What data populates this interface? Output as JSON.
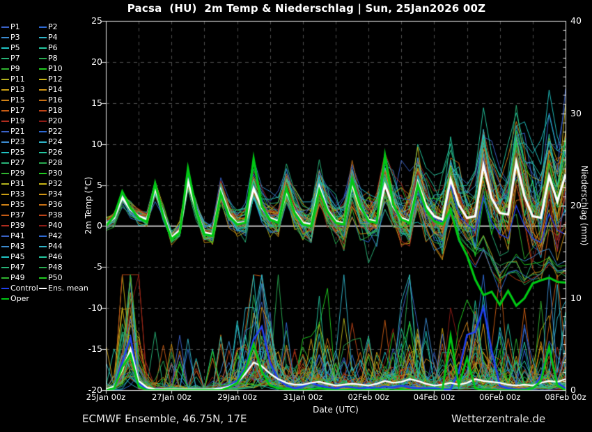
{
  "title": "Pacsa  (HU)  2m Temp & Niederschlag | Sun, 25Jan2026 00Z",
  "footer": {
    "left": "ECMWF Ensemble, 46.75N, 17E",
    "right": "Wetterzentrale.de"
  },
  "axes": {
    "left": {
      "label": "2m Temp (°C)",
      "ticks": [
        25,
        20,
        15,
        10,
        5,
        0,
        -5,
        -10,
        -15,
        -20
      ]
    },
    "right": {
      "label": "Niederschlag (mm)",
      "ticks": [
        40,
        30,
        20,
        10,
        0
      ]
    },
    "x": {
      "label": "Date (UTC)",
      "ticks": [
        "25Jan 00z",
        "27Jan 00z",
        "29Jan 00z",
        "31Jan 00z",
        "02Feb 00z",
        "04Feb 00z",
        "06Feb 00z",
        "08Feb 00z"
      ]
    }
  },
  "legend": {
    "members": [
      "P1",
      "P2",
      "P3",
      "P4",
      "P5",
      "P6",
      "P7",
      "P8",
      "P9",
      "P10",
      "P11",
      "P12",
      "P13",
      "P14",
      "P15",
      "P16",
      "P17",
      "P18",
      "P19",
      "P20",
      "P21",
      "P22",
      "P23",
      "P24",
      "P25",
      "P26",
      "P27",
      "P28",
      "P29",
      "P30",
      "P31",
      "P32",
      "P33",
      "P34",
      "P35",
      "P36",
      "P37",
      "P38",
      "P39",
      "P40",
      "P41",
      "P42",
      "P43",
      "P44",
      "P45",
      "P46",
      "P47",
      "P48",
      "P49",
      "P50"
    ],
    "special": [
      {
        "label": "Control",
        "color": "#2040ee"
      },
      {
        "label": "Ens. mean",
        "color": "#ffffff"
      },
      {
        "label": "Oper",
        "color": "#00c814"
      }
    ]
  },
  "chart_data": {
    "type": "line",
    "title": "Pacsa (HU) 2m Temp & Niederschlag, ECMWF ensemble run Sun 25Jan2026 00Z",
    "x_start_label": "25Jan 00z",
    "x_end_label": "08Feb 00z",
    "x_step_hours": 6,
    "n_points": 57,
    "temp_ylim": [
      -20,
      25
    ],
    "precip_ylim": [
      0,
      40
    ],
    "grid": "dashed gray, daily vertical, 5°C horizontal",
    "legend_position": "outside-left",
    "ensemble_member_count": 50,
    "member_colors": [
      "#3a62c8",
      "#2e6ad4",
      "#3c8cd2",
      "#30b4c8",
      "#20c4c4",
      "#24c8a0",
      "#28b478",
      "#28aa50",
      "#30b430",
      "#20cc20",
      "#b4b41e",
      "#c8b414",
      "#cca014",
      "#d29614",
      "#d08216",
      "#c87014",
      "#c85c14",
      "#c04418",
      "#b02c1e",
      "#8e1c16"
    ],
    "series": [
      {
        "id": "control_temp",
        "name": "Control 2m temp (°C)",
        "color": "#2040ee",
        "axis": "temp",
        "values": [
          0.1,
          0.9,
          3.8,
          1.8,
          1.0,
          0.6,
          4.9,
          1.3,
          -1.5,
          -0.7,
          5.8,
          1.8,
          -1.0,
          -1.2,
          4.5,
          1.3,
          0.2,
          0.4,
          5.0,
          2.0,
          0.8,
          0.5,
          4.0,
          1.5,
          0.2,
          0.0,
          4.5,
          1.8,
          0.4,
          0.2,
          5.4,
          2.0,
          0.6,
          0.3,
          5.2,
          2.2,
          0.8,
          0.4,
          4.8,
          2.0,
          0.9,
          0.5,
          5.0,
          1.5,
          0.2,
          -0.5,
          3.5,
          0.5,
          -1.0,
          -1.5,
          2.5,
          0.0,
          -1.5,
          -2.0,
          1.5,
          -0.5,
          -1.0
        ]
      },
      {
        "id": "control_precip",
        "name": "Control precipitation (mm/6h)",
        "color": "#2040ee",
        "axis": "precip",
        "values": [
          0.0,
          0.3,
          3.0,
          5.7,
          0.8,
          0.1,
          0.0,
          0.0,
          0.0,
          0.0,
          0.0,
          0.0,
          0.0,
          0.0,
          0.2,
          0.5,
          1.0,
          2.5,
          5.5,
          6.9,
          3.0,
          1.2,
          0.5,
          0.2,
          0.4,
          0.8,
          0.5,
          0.3,
          0.2,
          0.4,
          0.3,
          0.2,
          0.3,
          0.2,
          0.4,
          0.3,
          0.5,
          0.3,
          0.2,
          0.2,
          0.2,
          0.1,
          0.1,
          2.0,
          6.0,
          6.3,
          9.0,
          4.3,
          0.5,
          0.2,
          0.1,
          0.1,
          0.2,
          1.5,
          4.5,
          0.8,
          0.2
        ]
      },
      {
        "id": "mean_temp",
        "name": "Ens. mean 2m temp (°C)",
        "color": "#ffffff",
        "axis": "temp",
        "values": [
          0.2,
          1.0,
          3.5,
          2.0,
          1.2,
          0.8,
          4.6,
          1.5,
          -1.4,
          -0.5,
          5.5,
          2.0,
          -0.8,
          -1.0,
          4.3,
          1.5,
          0.3,
          0.5,
          4.6,
          2.2,
          1.0,
          0.6,
          4.2,
          1.8,
          0.4,
          0.2,
          4.8,
          2.0,
          0.6,
          0.3,
          5.2,
          2.2,
          0.8,
          0.5,
          5.0,
          2.4,
          1.0,
          0.6,
          5.3,
          2.5,
          1.2,
          0.8,
          5.7,
          2.6,
          1.0,
          1.2,
          7.4,
          3.4,
          1.6,
          1.4,
          7.8,
          3.6,
          1.2,
          1.0,
          6.1,
          3.0,
          6.3
        ]
      },
      {
        "id": "mean_precip",
        "name": "Ens. mean precipitation (mm/6h)",
        "color": "#ffffff",
        "axis": "precip",
        "values": [
          0.1,
          0.4,
          2.2,
          4.5,
          1.0,
          0.3,
          0.1,
          0.1,
          0.1,
          0.1,
          0.1,
          0.1,
          0.1,
          0.1,
          0.2,
          0.4,
          0.8,
          1.8,
          3.0,
          2.6,
          1.8,
          1.2,
          0.8,
          0.6,
          0.6,
          0.8,
          0.9,
          0.7,
          0.5,
          0.6,
          0.7,
          0.6,
          0.5,
          0.7,
          1.0,
          0.8,
          0.9,
          1.2,
          1.0,
          0.7,
          0.5,
          0.6,
          0.8,
          0.6,
          0.8,
          1.2,
          1.0,
          0.9,
          0.8,
          0.6,
          0.5,
          0.6,
          0.5,
          0.8,
          1.0,
          0.9,
          1.2
        ]
      },
      {
        "id": "oper_temp",
        "name": "Oper 2m temp (°C)",
        "color": "#00c814",
        "axis": "temp",
        "values": [
          0.0,
          1.2,
          4.2,
          2.2,
          1.0,
          0.5,
          5.2,
          1.2,
          -1.6,
          -0.8,
          7.0,
          2.0,
          -1.0,
          -1.2,
          4.0,
          1.2,
          0.2,
          0.4,
          8.2,
          2.4,
          0.8,
          0.4,
          4.6,
          1.6,
          0.2,
          0.0,
          4.4,
          1.8,
          0.4,
          0.2,
          5.6,
          2.4,
          0.6,
          0.4,
          8.6,
          2.6,
          0.8,
          0.4,
          5.0,
          2.0,
          0.6,
          0.2,
          2.0,
          -1.6,
          -3.6,
          -6.5,
          -8.4,
          -8.0,
          -9.6,
          -7.9,
          -9.7,
          -8.8,
          -7.0,
          -6.6,
          -6.3,
          -6.8,
          -6.9
        ]
      },
      {
        "id": "oper_precip",
        "name": "Oper precipitation (mm/6h)",
        "color": "#00c814",
        "axis": "precip",
        "values": [
          0.0,
          0.2,
          2.5,
          3.9,
          0.4,
          0.0,
          0.0,
          0.0,
          0.0,
          0.0,
          0.0,
          0.0,
          0.0,
          0.0,
          0.0,
          0.3,
          0.8,
          2.2,
          5.0,
          2.0,
          0.5,
          0.2,
          0.1,
          0.0,
          0.0,
          0.1,
          0.2,
          0.1,
          0.0,
          0.0,
          0.1,
          0.0,
          0.0,
          0.1,
          0.0,
          0.0,
          0.1,
          0.0,
          0.0,
          0.0,
          0.0,
          0.0,
          5.9,
          0.5,
          3.5,
          0.2,
          0.0,
          0.0,
          0.0,
          0.0,
          0.0,
          0.0,
          0.2,
          1.0,
          4.7,
          0.5,
          0.0
        ]
      }
    ]
  }
}
